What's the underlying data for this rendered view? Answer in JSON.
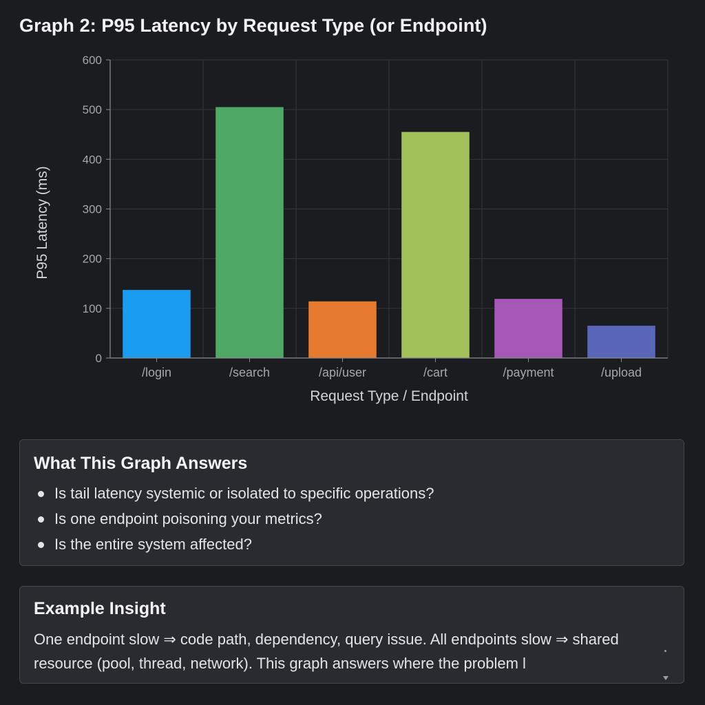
{
  "page": {
    "title": "Graph 2: P95 Latency by Request Type (or Endpoint)"
  },
  "chart_data": {
    "type": "bar",
    "categories": [
      "/login",
      "/search",
      "/api/user",
      "/cart",
      "/payment",
      "/upload"
    ],
    "values": [
      137,
      505,
      114,
      455,
      119,
      65
    ],
    "colors": [
      "#1a9cf0",
      "#4fa866",
      "#e67a2e",
      "#a3c15a",
      "#a558b7",
      "#5867b7"
    ],
    "xlabel": "Request Type / Endpoint",
    "ylabel": "P95 Latency (ms)",
    "ylim": [
      0,
      600
    ],
    "yticks": [
      0,
      100,
      200,
      300,
      400,
      500,
      600
    ],
    "grid": true
  },
  "answers_card": {
    "heading": "What This Graph Answers",
    "items": [
      "Is tail latency systemic or isolated to specific operations?",
      "Is one endpoint poisoning your metrics?",
      "Is the entire system affected?"
    ]
  },
  "insight_card": {
    "heading": "Example Insight",
    "text": "One endpoint slow ⇒ code path, dependency, query issue. All endpoints slow ⇒ shared resource (pool, thread, network). This graph answers where the problem l"
  }
}
